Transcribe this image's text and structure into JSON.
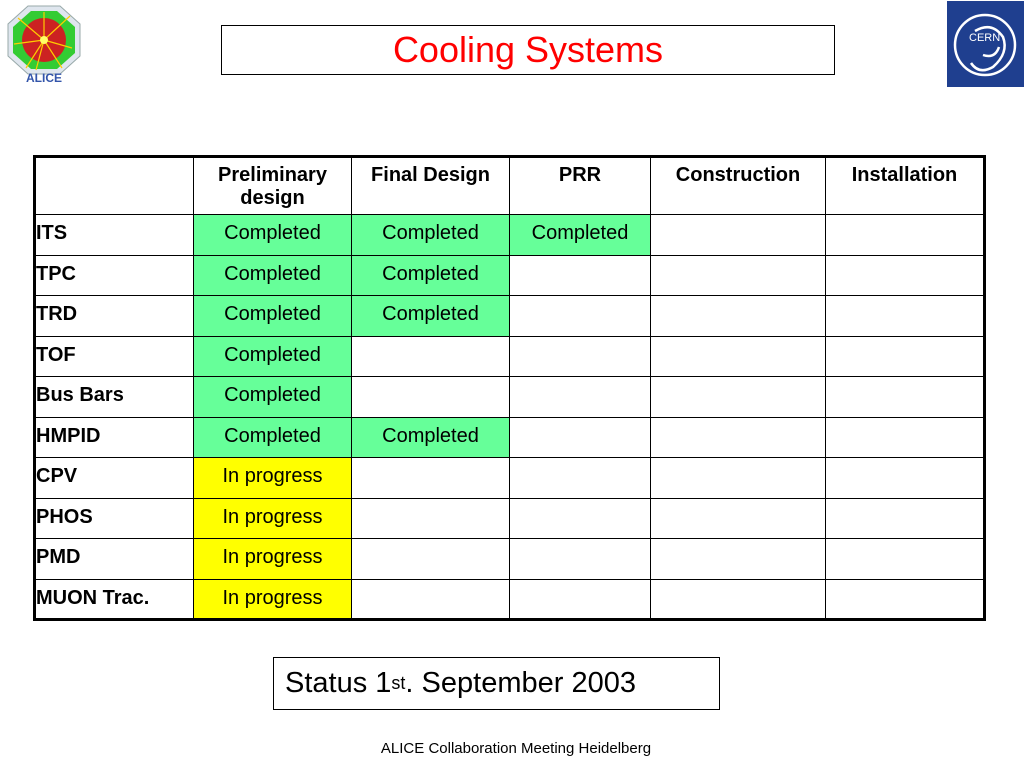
{
  "title": "Cooling Systems",
  "logos": {
    "left": "ALICE",
    "right": "CERN"
  },
  "table": {
    "headers": [
      "",
      "Preliminary design",
      "Final Design",
      "PRR",
      "Construction",
      "Installation"
    ],
    "rows": [
      {
        "name": "ITS",
        "cells": [
          "Completed",
          "Completed",
          "Completed",
          "",
          ""
        ]
      },
      {
        "name": "TPC",
        "cells": [
          "Completed",
          "Completed",
          "",
          "",
          ""
        ]
      },
      {
        "name": "TRD",
        "cells": [
          "Completed",
          "Completed",
          "",
          "",
          ""
        ]
      },
      {
        "name": "TOF",
        "cells": [
          "Completed",
          "",
          "",
          "",
          ""
        ]
      },
      {
        "name": "Bus Bars",
        "cells": [
          "Completed",
          "",
          "",
          "",
          ""
        ]
      },
      {
        "name": "HMPID",
        "cells": [
          "Completed",
          "Completed",
          "",
          "",
          ""
        ]
      },
      {
        "name": "CPV",
        "cells": [
          "In progress",
          "",
          "",
          "",
          ""
        ]
      },
      {
        "name": "PHOS",
        "cells": [
          "In progress",
          "",
          "",
          "",
          ""
        ]
      },
      {
        "name": "PMD",
        "cells": [
          "In progress",
          "",
          "",
          "",
          ""
        ]
      },
      {
        "name": "MUON Trac.",
        "cells": [
          "In progress",
          "",
          "",
          "",
          ""
        ]
      }
    ]
  },
  "status": {
    "prefix": "Status 1",
    "sup": "st",
    "suffix": ". September 2003"
  },
  "footer": "ALICE Collaboration Meeting Heidelberg",
  "colors": {
    "completed": "#66ff99",
    "in_progress": "#ffff00",
    "title": "#ff0000",
    "cern_blue": "#1f3f8f"
  }
}
